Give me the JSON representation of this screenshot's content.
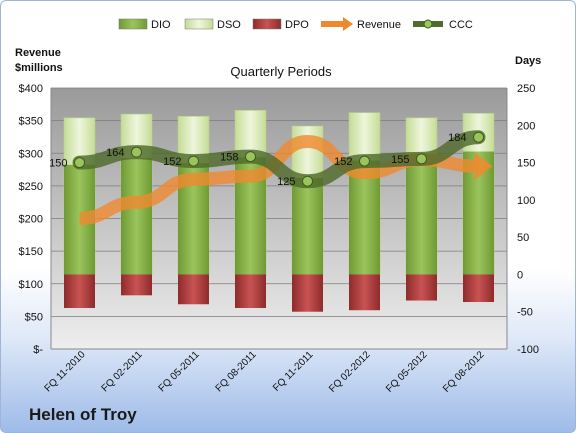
{
  "chart_data": {
    "type": "bar",
    "title": "Quarterly Periods",
    "left_axis_label": "Revenue\n$millions",
    "right_axis_label": "Days",
    "categories": [
      "FQ 11-2010",
      "FQ 02-2011",
      "FQ 05-2011",
      "FQ 08-2011",
      "FQ 11-2011",
      "FQ 02-2012",
      "FQ 05-2012",
      "FQ 08-2012"
    ],
    "left_axis": {
      "min": 0,
      "max": 400,
      "step": 50,
      "tick_labels": [
        "$-",
        "$50",
        "$100",
        "$150",
        "$200",
        "$250",
        "$300",
        "$350",
        "$400"
      ]
    },
    "right_axis": {
      "min": -100,
      "max": 250,
      "step": 50,
      "tick_labels": [
        "-100",
        "-50",
        "0",
        "50",
        "100",
        "150",
        "200",
        "250"
      ]
    },
    "legend": [
      "DIO",
      "DSO",
      "DPO",
      "Revenue",
      "CCC"
    ],
    "legend_position": "top",
    "series": [
      {
        "name": "DIO",
        "axis": "right",
        "values": [
          -15,
          -22,
          -15,
          -12,
          -35,
          -10,
          -15,
          25
        ]
      },
      {
        "name": "DSO",
        "axis": "right",
        "values": [
          210,
          215,
          212,
          220,
          199,
          217,
          210,
          216
        ]
      },
      {
        "name": "DPO",
        "axis": "right",
        "values": [
          -45,
          -28,
          -40,
          -45,
          -50,
          -48,
          -35,
          -37
        ]
      },
      {
        "name": "Revenue",
        "axis": "left",
        "values": [
          200,
          225,
          260,
          265,
          318,
          270,
          290,
          280
        ]
      },
      {
        "name": "CCC",
        "axis": "right",
        "values": [
          150,
          164,
          152,
          158,
          125,
          152,
          155,
          184
        ],
        "labels": [
          "150",
          "164",
          "152",
          "158",
          "125",
          "152",
          "155",
          "184"
        ]
      }
    ],
    "colors": {
      "DIO": "#8cb152",
      "DSO": "#d8e8b4",
      "DPO": "#b03a3a",
      "Revenue": "#f0892e",
      "CCC": "#4f6a2c"
    },
    "grid": true
  },
  "company_label": "Helen of Troy"
}
